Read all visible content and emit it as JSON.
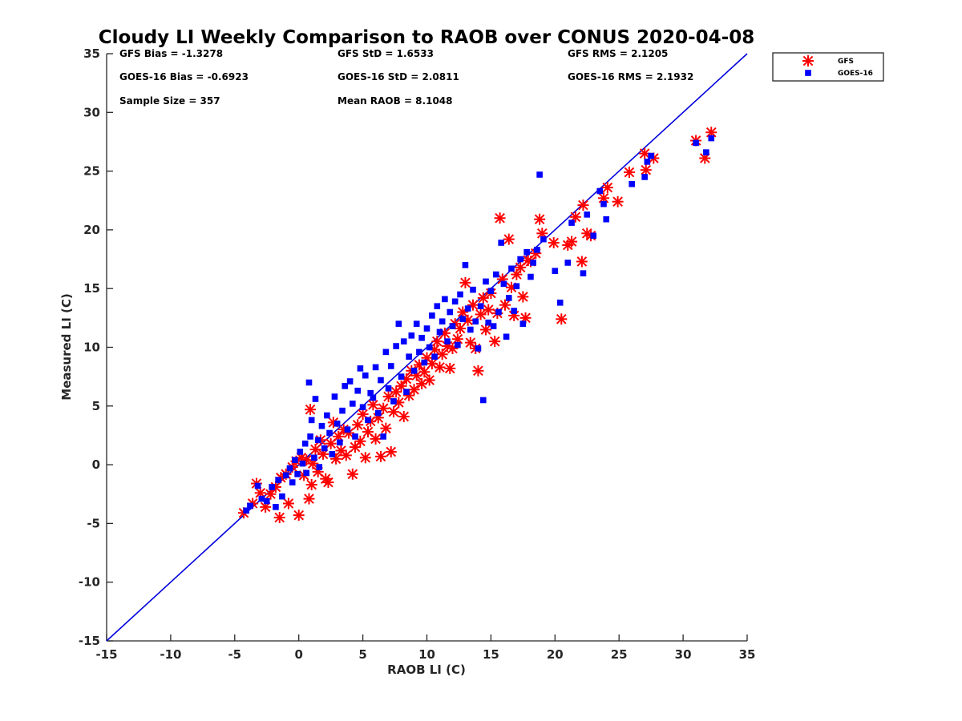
{
  "chart_data": {
    "type": "scatter",
    "title": "Cloudy LI Weekly Comparison to RAOB over CONUS 2020-04-08",
    "xlabel": "RAOB LI (C)",
    "ylabel": "Measured LI (C)",
    "xlim": [
      -15,
      35
    ],
    "ylim": [
      -15,
      35
    ],
    "xticks": [
      "-15",
      "-10",
      "-5",
      "0",
      "5",
      "10",
      "15",
      "20",
      "25",
      "30",
      "35"
    ],
    "yticks": [
      "-15",
      "-10",
      "-5",
      "0",
      "5",
      "10",
      "15",
      "20",
      "25",
      "30",
      "35"
    ],
    "grid": false,
    "legend_position": "outside-top-right",
    "reference_line": {
      "x": [
        -15,
        35
      ],
      "y": [
        -15,
        35
      ],
      "color": "#0000dd"
    },
    "stats": [
      [
        "GFS Bias = -1.3278",
        "GFS StD = 1.6533",
        "GFS RMS = 2.1205"
      ],
      [
        "GOES-16 Bias = -0.6923",
        "GOES-16 StD = 2.0811",
        "GOES-16 RMS = 2.1932"
      ],
      [
        "Sample Size = 357",
        "Mean RAOB = 8.1048",
        ""
      ]
    ],
    "series": [
      {
        "name": "GFS",
        "marker": "asterisk",
        "color": "#ff0000",
        "points": [
          [
            -4.3,
            -4.1
          ],
          [
            -3.6,
            -3.3
          ],
          [
            -3.3,
            -1.6
          ],
          [
            -3.0,
            -2.4
          ],
          [
            -2.6,
            -3.6
          ],
          [
            -2.2,
            -2.5
          ],
          [
            -1.8,
            -1.9
          ],
          [
            -1.5,
            -4.5
          ],
          [
            -1.4,
            -1.1
          ],
          [
            -1.0,
            -0.8
          ],
          [
            -0.8,
            -3.3
          ],
          [
            -0.5,
            -0.2
          ],
          [
            -0.2,
            0.3
          ],
          [
            0.0,
            -4.3
          ],
          [
            0.2,
            0.6
          ],
          [
            0.4,
            -0.9
          ],
          [
            0.6,
            0.4
          ],
          [
            0.8,
            -2.9
          ],
          [
            0.9,
            4.7
          ],
          [
            1.0,
            -1.7
          ],
          [
            1.1,
            0.1
          ],
          [
            1.3,
            1.3
          ],
          [
            1.5,
            -0.6
          ],
          [
            1.7,
            2.1
          ],
          [
            1.9,
            0.9
          ],
          [
            2.1,
            -1.2
          ],
          [
            2.3,
            -1.5
          ],
          [
            2.5,
            1.8
          ],
          [
            2.7,
            3.6
          ],
          [
            2.9,
            0.5
          ],
          [
            3.1,
            2.4
          ],
          [
            3.3,
            1.2
          ],
          [
            3.5,
            3.0
          ],
          [
            3.7,
            0.8
          ],
          [
            3.9,
            2.7
          ],
          [
            4.2,
            -0.8
          ],
          [
            4.4,
            1.5
          ],
          [
            4.6,
            3.4
          ],
          [
            4.8,
            2.0
          ],
          [
            5.0,
            4.3
          ],
          [
            5.2,
            0.6
          ],
          [
            5.4,
            2.8
          ],
          [
            5.6,
            3.7
          ],
          [
            5.8,
            5.1
          ],
          [
            6.0,
            2.2
          ],
          [
            6.2,
            4.0
          ],
          [
            6.4,
            0.7
          ],
          [
            6.6,
            4.8
          ],
          [
            6.8,
            3.1
          ],
          [
            7.0,
            5.8
          ],
          [
            7.2,
            1.1
          ],
          [
            7.4,
            4.5
          ],
          [
            7.6,
            6.2
          ],
          [
            7.8,
            5.3
          ],
          [
            8.0,
            6.7
          ],
          [
            8.2,
            4.1
          ],
          [
            8.4,
            7.3
          ],
          [
            8.6,
            5.9
          ],
          [
            8.8,
            8.0
          ],
          [
            9.0,
            6.4
          ],
          [
            9.2,
            7.6
          ],
          [
            9.4,
            8.5
          ],
          [
            9.6,
            6.9
          ],
          [
            9.8,
            7.9
          ],
          [
            10.0,
            9.1
          ],
          [
            10.2,
            7.2
          ],
          [
            10.4,
            8.6
          ],
          [
            10.6,
            9.8
          ],
          [
            10.8,
            10.5
          ],
          [
            11.0,
            8.3
          ],
          [
            11.2,
            9.4
          ],
          [
            11.4,
            11.2
          ],
          [
            11.6,
            10.1
          ],
          [
            11.8,
            8.2
          ],
          [
            12.0,
            9.9
          ],
          [
            12.2,
            12.0
          ],
          [
            12.4,
            10.7
          ],
          [
            12.6,
            11.6
          ],
          [
            12.8,
            13.0
          ],
          [
            13.0,
            15.5
          ],
          [
            13.2,
            12.3
          ],
          [
            13.4,
            10.4
          ],
          [
            13.6,
            13.6
          ],
          [
            13.8,
            9.9
          ],
          [
            14.0,
            8.0
          ],
          [
            14.2,
            12.8
          ],
          [
            14.4,
            14.2
          ],
          [
            14.6,
            11.5
          ],
          [
            14.8,
            13.2
          ],
          [
            15.0,
            14.6
          ],
          [
            15.3,
            10.5
          ],
          [
            15.5,
            12.9
          ],
          [
            15.7,
            21.0
          ],
          [
            15.9,
            15.8
          ],
          [
            16.1,
            13.6
          ],
          [
            16.4,
            19.2
          ],
          [
            16.6,
            15.1
          ],
          [
            16.8,
            12.7
          ],
          [
            17.0,
            16.2
          ],
          [
            17.3,
            16.8
          ],
          [
            17.5,
            14.3
          ],
          [
            17.7,
            12.5
          ],
          [
            17.9,
            17.4
          ],
          [
            18.1,
            17.3
          ],
          [
            18.5,
            18.0
          ],
          [
            18.8,
            20.9
          ],
          [
            19.0,
            19.7
          ],
          [
            19.9,
            18.9
          ],
          [
            20.5,
            12.4
          ],
          [
            21.0,
            18.7
          ],
          [
            21.3,
            19.0
          ],
          [
            21.6,
            21.1
          ],
          [
            22.1,
            17.3
          ],
          [
            22.2,
            22.1
          ],
          [
            22.5,
            19.7
          ],
          [
            22.8,
            19.5
          ],
          [
            23.8,
            22.7
          ],
          [
            24.1,
            23.6
          ],
          [
            24.9,
            22.4
          ],
          [
            25.8,
            24.9
          ],
          [
            27.0,
            26.5
          ],
          [
            27.1,
            25.1
          ],
          [
            27.7,
            26.1
          ],
          [
            31.0,
            27.6
          ],
          [
            31.7,
            26.1
          ],
          [
            32.2,
            28.3
          ]
        ]
      },
      {
        "name": "GOES-16",
        "marker": "square",
        "color": "#0000ff",
        "points": [
          [
            -4.1,
            -3.9
          ],
          [
            -3.8,
            -3.5
          ],
          [
            -3.2,
            -1.8
          ],
          [
            -2.9,
            -2.9
          ],
          [
            -2.5,
            -3.1
          ],
          [
            -2.1,
            -1.9
          ],
          [
            -1.8,
            -3.6
          ],
          [
            -1.6,
            -1.3
          ],
          [
            -1.3,
            -2.7
          ],
          [
            -1.0,
            -0.9
          ],
          [
            -0.7,
            -0.3
          ],
          [
            -0.5,
            -1.5
          ],
          [
            -0.3,
            0.4
          ],
          [
            -0.1,
            -0.8
          ],
          [
            0.1,
            1.1
          ],
          [
            0.3,
            0.1
          ],
          [
            0.5,
            1.8
          ],
          [
            0.6,
            -0.7
          ],
          [
            0.8,
            7.0
          ],
          [
            0.9,
            2.4
          ],
          [
            1.0,
            3.8
          ],
          [
            1.2,
            0.6
          ],
          [
            1.3,
            5.6
          ],
          [
            1.5,
            2.1
          ],
          [
            1.6,
            -0.2
          ],
          [
            1.8,
            3.3
          ],
          [
            2.0,
            1.4
          ],
          [
            2.2,
            4.2
          ],
          [
            2.4,
            2.7
          ],
          [
            2.6,
            0.9
          ],
          [
            2.8,
            5.8
          ],
          [
            3.0,
            3.5
          ],
          [
            3.2,
            1.9
          ],
          [
            3.4,
            4.6
          ],
          [
            3.6,
            6.7
          ],
          [
            3.8,
            3.0
          ],
          [
            4.0,
            7.1
          ],
          [
            4.2,
            5.2
          ],
          [
            4.4,
            2.4
          ],
          [
            4.6,
            6.3
          ],
          [
            4.8,
            8.2
          ],
          [
            5.0,
            4.9
          ],
          [
            5.2,
            7.6
          ],
          [
            5.4,
            3.8
          ],
          [
            5.6,
            6.1
          ],
          [
            5.8,
            5.7
          ],
          [
            6.0,
            8.3
          ],
          [
            6.2,
            4.4
          ],
          [
            6.4,
            7.2
          ],
          [
            6.6,
            2.4
          ],
          [
            6.8,
            9.6
          ],
          [
            7.0,
            6.5
          ],
          [
            7.2,
            8.4
          ],
          [
            7.4,
            5.4
          ],
          [
            7.6,
            10.1
          ],
          [
            7.8,
            12.0
          ],
          [
            8.0,
            7.5
          ],
          [
            8.2,
            10.5
          ],
          [
            8.4,
            6.2
          ],
          [
            8.6,
            9.2
          ],
          [
            8.8,
            11.0
          ],
          [
            9.0,
            8.0
          ],
          [
            9.2,
            12.0
          ],
          [
            9.4,
            9.6
          ],
          [
            9.6,
            10.8
          ],
          [
            9.8,
            8.7
          ],
          [
            10.0,
            11.6
          ],
          [
            10.2,
            10.0
          ],
          [
            10.4,
            12.7
          ],
          [
            10.6,
            9.2
          ],
          [
            10.8,
            13.5
          ],
          [
            11.0,
            11.3
          ],
          [
            11.2,
            12.2
          ],
          [
            11.4,
            14.1
          ],
          [
            11.6,
            10.5
          ],
          [
            11.8,
            13.0
          ],
          [
            12.0,
            11.8
          ],
          [
            12.2,
            13.9
          ],
          [
            12.4,
            10.2
          ],
          [
            12.6,
            14.5
          ],
          [
            12.8,
            12.4
          ],
          [
            13.0,
            17.0
          ],
          [
            13.2,
            13.3
          ],
          [
            13.4,
            11.5
          ],
          [
            13.6,
            14.9
          ],
          [
            13.8,
            12.2
          ],
          [
            14.0,
            9.9
          ],
          [
            14.2,
            13.5
          ],
          [
            14.4,
            5.5
          ],
          [
            14.6,
            15.6
          ],
          [
            14.8,
            12.1
          ],
          [
            15.0,
            14.8
          ],
          [
            15.2,
            11.8
          ],
          [
            15.4,
            16.2
          ],
          [
            15.6,
            13.0
          ],
          [
            15.8,
            18.9
          ],
          [
            16.0,
            15.4
          ],
          [
            16.2,
            10.9
          ],
          [
            16.4,
            14.2
          ],
          [
            16.6,
            16.7
          ],
          [
            16.8,
            13.1
          ],
          [
            17.0,
            15.2
          ],
          [
            17.3,
            17.5
          ],
          [
            17.5,
            12.0
          ],
          [
            17.8,
            18.1
          ],
          [
            18.1,
            16.0
          ],
          [
            18.3,
            17.2
          ],
          [
            18.6,
            18.3
          ],
          [
            18.8,
            24.7
          ],
          [
            19.1,
            19.2
          ],
          [
            20.0,
            16.5
          ],
          [
            20.4,
            13.8
          ],
          [
            21.0,
            17.2
          ],
          [
            21.3,
            20.6
          ],
          [
            22.2,
            16.3
          ],
          [
            22.5,
            21.3
          ],
          [
            23.0,
            19.5
          ],
          [
            23.5,
            23.3
          ],
          [
            23.8,
            22.2
          ],
          [
            24.0,
            20.9
          ],
          [
            26.0,
            23.9
          ],
          [
            27.0,
            24.5
          ],
          [
            27.2,
            25.8
          ],
          [
            27.5,
            26.3
          ],
          [
            31.0,
            27.4
          ],
          [
            31.8,
            26.6
          ],
          [
            32.2,
            27.8
          ]
        ]
      }
    ]
  }
}
